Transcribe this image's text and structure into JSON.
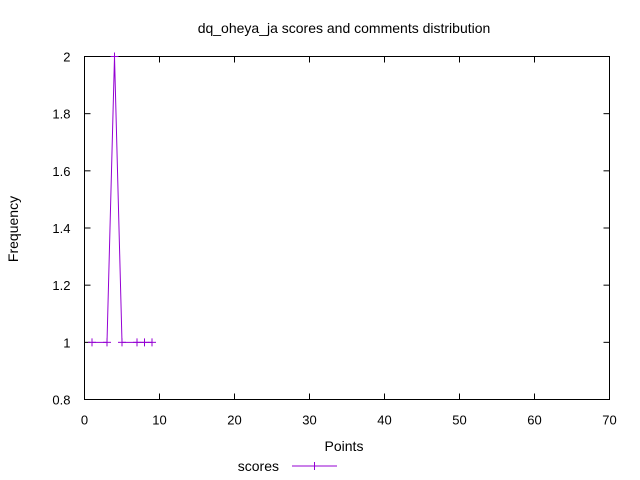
{
  "chart_data": {
    "type": "line",
    "title": "dq_oheya_ja scores and comments distribution",
    "xlabel": "Points",
    "ylabel": "Frequency",
    "xlim": [
      0,
      70
    ],
    "ylim": [
      0.8,
      2
    ],
    "xticks": [
      0,
      10,
      20,
      30,
      40,
      50,
      60,
      70
    ],
    "yticks": [
      0.8,
      1,
      1.2,
      1.4,
      1.6,
      1.8,
      2
    ],
    "xtick_labels": [
      "0",
      "10",
      "20",
      "30",
      "40",
      "50",
      "60",
      "70"
    ],
    "ytick_labels": [
      "0.8",
      "1",
      "1.2",
      "1.4",
      "1.6",
      "1.8",
      "2"
    ],
    "grid": false,
    "legend_position": "bottom-center",
    "series": [
      {
        "name": "scores",
        "color": "#9400d3",
        "marker": "plus",
        "x": [
          1,
          3,
          4,
          5,
          7,
          8,
          9
        ],
        "y": [
          1,
          1,
          2,
          1,
          1,
          1,
          1
        ]
      }
    ]
  }
}
